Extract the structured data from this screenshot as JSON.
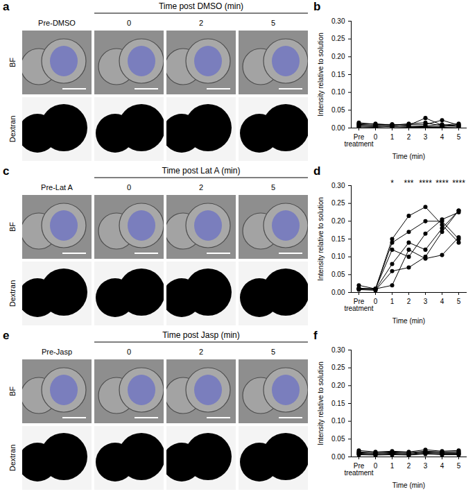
{
  "panels": [
    {
      "panel": "a",
      "title": "Time post DMSO (min)",
      "columns": [
        "Pre-DMSO",
        "0",
        "2",
        "5"
      ],
      "rows": [
        "BF",
        "Dextran"
      ]
    },
    {
      "panel": "c",
      "title": "Time post Lat A (min)",
      "columns": [
        "Pre-Lat A",
        "0",
        "2",
        "5"
      ],
      "rows": [
        "BF",
        "Dextran"
      ]
    },
    {
      "panel": "e",
      "title": "Time post Jasp (min)",
      "columns": [
        "Pre-Jasp",
        "0",
        "2",
        "5"
      ],
      "rows": [
        "BF",
        "Dextran"
      ]
    }
  ],
  "chart_data": [
    {
      "panel": "b",
      "type": "line",
      "x_label": "Time (min)",
      "y_label": "Intensity relative to solution",
      "categories": [
        "Pre\ntreatment",
        "0",
        "1",
        "2",
        "3",
        "4",
        "5"
      ],
      "ylim": [
        0,
        0.3
      ],
      "yticks": [
        {
          "value": 0,
          "label": "0.00"
        },
        {
          "value": 0.05,
          "label": "0.05"
        },
        {
          "value": 0.1,
          "label": "0.10"
        },
        {
          "value": 0.15,
          "label": "0.15"
        },
        {
          "value": 0.2,
          "label": "0.20"
        },
        {
          "value": 0.25,
          "label": "0.25"
        },
        {
          "value": 0.3,
          "label": "0.30"
        }
      ],
      "color": "#000000",
      "marker": "circle",
      "series": [
        {
          "values": [
            0.015,
            0.01,
            0.01,
            0.008,
            0.028,
            0.008,
            0.012
          ]
        },
        {
          "values": [
            0.01,
            0.008,
            0.006,
            0.01,
            0.01,
            0.022,
            0.008
          ]
        },
        {
          "values": [
            0.008,
            0.006,
            0.01,
            0.005,
            0.006,
            0.01,
            0.005
          ]
        },
        {
          "values": [
            0.005,
            0.004,
            0.003,
            0.003,
            0.004,
            0.004,
            0.01
          ]
        },
        {
          "values": [
            0.012,
            0.012,
            0.008,
            0.012,
            0.015,
            0.006,
            0.006
          ]
        },
        {
          "values": [
            0.003,
            0.002,
            0.005,
            0.002,
            0.002,
            0.002,
            0.003
          ]
        }
      ]
    },
    {
      "panel": "d",
      "type": "line",
      "x_label": "Time (min)",
      "y_label": "Intensity relative to solution",
      "categories": [
        "Pre\ntreatment",
        "0",
        "1",
        "2",
        "3",
        "4",
        "5"
      ],
      "ylim": [
        0,
        0.3
      ],
      "yticks": [
        {
          "value": 0,
          "label": "0.00"
        },
        {
          "value": 0.05,
          "label": "0.05"
        },
        {
          "value": 0.1,
          "label": "0.10"
        },
        {
          "value": 0.15,
          "label": "0.15"
        },
        {
          "value": 0.2,
          "label": "0.20"
        },
        {
          "value": 0.25,
          "label": "0.25"
        },
        {
          "value": 0.3,
          "label": "0.30"
        }
      ],
      "color": "#000000",
      "marker": "circle",
      "annotations": [
        {
          "x": "1",
          "text": "*"
        },
        {
          "x": "2",
          "text": "***"
        },
        {
          "x": "3",
          "text": "****"
        },
        {
          "x": "4",
          "text": "****"
        },
        {
          "x": "5",
          "text": "****"
        }
      ],
      "series": [
        {
          "values": [
            0.01,
            0.01,
            0.15,
            0.215,
            0.24,
            0.19,
            0.14
          ]
        },
        {
          "values": [
            0.02,
            0.01,
            0.14,
            0.17,
            0.2,
            0.2,
            0.15
          ]
        },
        {
          "values": [
            0.01,
            0.01,
            0.12,
            0.1,
            0.165,
            0.205,
            0.225
          ]
        },
        {
          "values": [
            0.01,
            0.008,
            0.08,
            0.14,
            0.12,
            0.18,
            0.23
          ]
        },
        {
          "values": [
            0.008,
            0.006,
            0.06,
            0.07,
            0.1,
            0.17,
            0.23
          ]
        },
        {
          "values": [
            0.012,
            0.01,
            0.02,
            0.12,
            0.095,
            0.105,
            0.155
          ]
        }
      ]
    },
    {
      "panel": "f",
      "type": "line",
      "x_label": "Time (min)",
      "y_label": "Intensity relative to solution",
      "categories": [
        "Pre\ntreatment",
        "0",
        "1",
        "2",
        "3",
        "4",
        "5"
      ],
      "ylim": [
        0,
        0.3
      ],
      "yticks": [
        {
          "value": 0,
          "label": "0.00"
        },
        {
          "value": 0.05,
          "label": "0.05"
        },
        {
          "value": 0.1,
          "label": "0.10"
        },
        {
          "value": 0.15,
          "label": "0.15"
        },
        {
          "value": 0.2,
          "label": "0.20"
        },
        {
          "value": 0.25,
          "label": "0.25"
        },
        {
          "value": 0.3,
          "label": "0.30"
        }
      ],
      "color": "#000000",
      "marker": "circle",
      "series": [
        {
          "values": [
            0.018,
            0.014,
            0.016,
            0.014,
            0.02,
            0.016,
            0.018
          ]
        },
        {
          "values": [
            0.014,
            0.012,
            0.014,
            0.012,
            0.016,
            0.014,
            0.015
          ]
        },
        {
          "values": [
            0.012,
            0.01,
            0.012,
            0.01,
            0.014,
            0.012,
            0.012
          ]
        },
        {
          "values": [
            0.01,
            0.008,
            0.01,
            0.008,
            0.012,
            0.01,
            0.01
          ]
        },
        {
          "values": [
            0.008,
            0.006,
            0.008,
            0.006,
            0.01,
            0.008,
            0.008
          ]
        },
        {
          "values": [
            0.006,
            0.005,
            0.006,
            0.005,
            0.008,
            0.006,
            0.006
          ]
        }
      ]
    }
  ]
}
